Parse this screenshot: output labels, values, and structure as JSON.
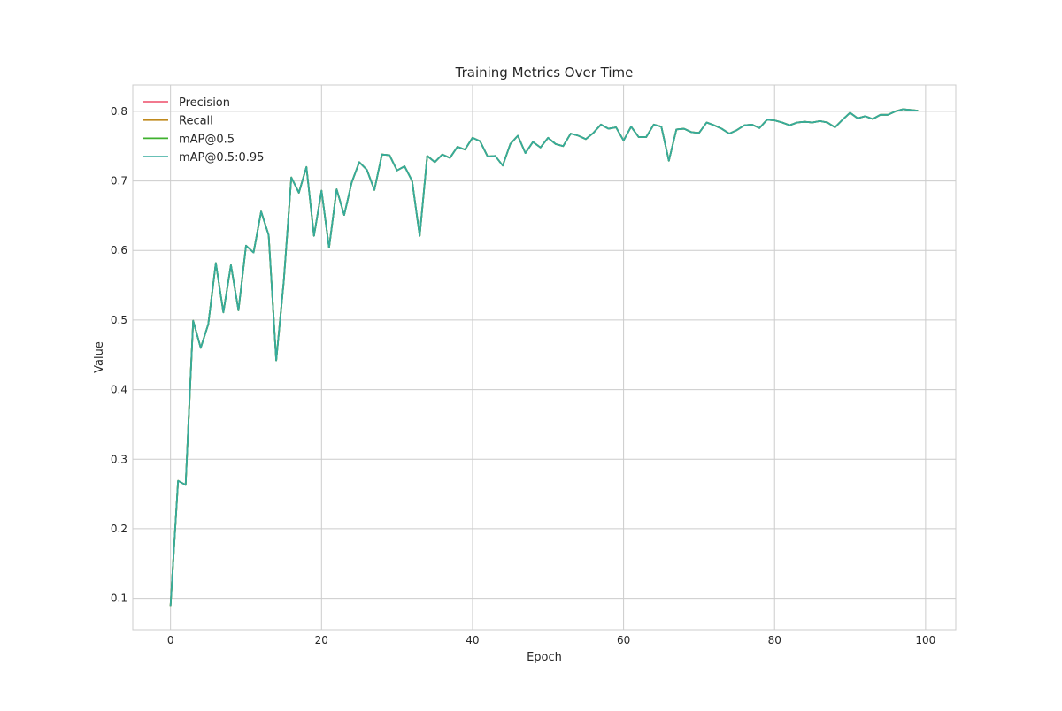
{
  "chart_data": {
    "type": "line",
    "title": "Training Metrics Over Time",
    "xlabel": "Epoch",
    "ylabel": "Value",
    "xlim": [
      -5,
      104
    ],
    "ylim": [
      0.055,
      0.838
    ],
    "xticks": [
      0,
      20,
      40,
      60,
      80,
      100
    ],
    "yticks": [
      0.1,
      0.2,
      0.3,
      0.4,
      0.5,
      0.6,
      0.7,
      0.8
    ],
    "grid": true,
    "legend_position": "top-left",
    "x": [
      0,
      1,
      2,
      3,
      4,
      5,
      6,
      7,
      8,
      9,
      10,
      11,
      12,
      13,
      14,
      15,
      16,
      17,
      18,
      19,
      20,
      21,
      22,
      23,
      24,
      25,
      26,
      27,
      28,
      29,
      30,
      31,
      32,
      33,
      34,
      35,
      36,
      37,
      38,
      39,
      40,
      41,
      42,
      43,
      44,
      45,
      46,
      47,
      48,
      49,
      50,
      51,
      52,
      53,
      54,
      55,
      56,
      57,
      58,
      59,
      60,
      61,
      62,
      63,
      64,
      65,
      66,
      67,
      68,
      69,
      70,
      71,
      72,
      73,
      74,
      75,
      76,
      77,
      78,
      79,
      80,
      81,
      82,
      83,
      84,
      85,
      86,
      87,
      88,
      89,
      90,
      91,
      92,
      93,
      94,
      95,
      96,
      97,
      98,
      99
    ],
    "series": [
      {
        "name": "Precision",
        "color": "#f0667e",
        "values": [
          0.089,
          0.269,
          0.263,
          0.499,
          0.46,
          0.494,
          0.582,
          0.511,
          0.579,
          0.514,
          0.607,
          0.597,
          0.656,
          0.622,
          0.442,
          0.556,
          0.705,
          0.683,
          0.72,
          0.621,
          0.686,
          0.604,
          0.688,
          0.651,
          0.698,
          0.727,
          0.716,
          0.687,
          0.738,
          0.737,
          0.715,
          0.721,
          0.7,
          0.621,
          0.736,
          0.727,
          0.738,
          0.733,
          0.749,
          0.745,
          0.762,
          0.757,
          0.735,
          0.736,
          0.722,
          0.753,
          0.765,
          0.74,
          0.756,
          0.748,
          0.762,
          0.753,
          0.75,
          0.768,
          0.765,
          0.76,
          0.769,
          0.781,
          0.775,
          0.777,
          0.758,
          0.778,
          0.763,
          0.763,
          0.781,
          0.778,
          0.729,
          0.774,
          0.775,
          0.77,
          0.769,
          0.784,
          0.78,
          0.775,
          0.768,
          0.773,
          0.78,
          0.781,
          0.776,
          0.788,
          0.787,
          0.784,
          0.78,
          0.784,
          0.785,
          0.784,
          0.786,
          0.784,
          0.777,
          0.788,
          0.798,
          0.79,
          0.793,
          0.789,
          0.795,
          0.795,
          0.8,
          0.803,
          0.802,
          0.801
        ]
      },
      {
        "name": "Recall",
        "color": "#c08a1e",
        "values": [
          0.089,
          0.269,
          0.263,
          0.499,
          0.46,
          0.494,
          0.582,
          0.511,
          0.579,
          0.514,
          0.607,
          0.597,
          0.656,
          0.622,
          0.442,
          0.556,
          0.705,
          0.683,
          0.72,
          0.621,
          0.686,
          0.604,
          0.688,
          0.651,
          0.698,
          0.727,
          0.716,
          0.687,
          0.738,
          0.737,
          0.715,
          0.721,
          0.7,
          0.621,
          0.736,
          0.727,
          0.738,
          0.733,
          0.749,
          0.745,
          0.762,
          0.757,
          0.735,
          0.736,
          0.722,
          0.753,
          0.765,
          0.74,
          0.756,
          0.748,
          0.762,
          0.753,
          0.75,
          0.768,
          0.765,
          0.76,
          0.769,
          0.781,
          0.775,
          0.777,
          0.758,
          0.778,
          0.763,
          0.763,
          0.781,
          0.778,
          0.729,
          0.774,
          0.775,
          0.77,
          0.769,
          0.784,
          0.78,
          0.775,
          0.768,
          0.773,
          0.78,
          0.781,
          0.776,
          0.788,
          0.787,
          0.784,
          0.78,
          0.784,
          0.785,
          0.784,
          0.786,
          0.784,
          0.777,
          0.788,
          0.798,
          0.79,
          0.793,
          0.789,
          0.795,
          0.795,
          0.8,
          0.803,
          0.802,
          0.801
        ]
      },
      {
        "name": "mAP@0.5",
        "color": "#3fb12e",
        "values": [
          0.089,
          0.269,
          0.263,
          0.499,
          0.46,
          0.494,
          0.582,
          0.511,
          0.579,
          0.514,
          0.607,
          0.597,
          0.656,
          0.622,
          0.442,
          0.556,
          0.705,
          0.683,
          0.72,
          0.621,
          0.686,
          0.604,
          0.688,
          0.651,
          0.698,
          0.727,
          0.716,
          0.687,
          0.738,
          0.737,
          0.715,
          0.721,
          0.7,
          0.621,
          0.736,
          0.727,
          0.738,
          0.733,
          0.749,
          0.745,
          0.762,
          0.757,
          0.735,
          0.736,
          0.722,
          0.753,
          0.765,
          0.74,
          0.756,
          0.748,
          0.762,
          0.753,
          0.75,
          0.768,
          0.765,
          0.76,
          0.769,
          0.781,
          0.775,
          0.777,
          0.758,
          0.778,
          0.763,
          0.763,
          0.781,
          0.778,
          0.729,
          0.774,
          0.775,
          0.77,
          0.769,
          0.784,
          0.78,
          0.775,
          0.768,
          0.773,
          0.78,
          0.781,
          0.776,
          0.788,
          0.787,
          0.784,
          0.78,
          0.784,
          0.785,
          0.784,
          0.786,
          0.784,
          0.777,
          0.788,
          0.798,
          0.79,
          0.793,
          0.789,
          0.795,
          0.795,
          0.8,
          0.803,
          0.802,
          0.801
        ]
      },
      {
        "name": "mAP@0.5:0.95",
        "color": "#36ab9d",
        "values": [
          0.089,
          0.269,
          0.263,
          0.499,
          0.46,
          0.494,
          0.582,
          0.511,
          0.579,
          0.514,
          0.607,
          0.597,
          0.656,
          0.622,
          0.442,
          0.556,
          0.705,
          0.683,
          0.72,
          0.621,
          0.686,
          0.604,
          0.688,
          0.651,
          0.698,
          0.727,
          0.716,
          0.687,
          0.738,
          0.737,
          0.715,
          0.721,
          0.7,
          0.621,
          0.736,
          0.727,
          0.738,
          0.733,
          0.749,
          0.745,
          0.762,
          0.757,
          0.735,
          0.736,
          0.722,
          0.753,
          0.765,
          0.74,
          0.756,
          0.748,
          0.762,
          0.753,
          0.75,
          0.768,
          0.765,
          0.76,
          0.769,
          0.781,
          0.775,
          0.777,
          0.758,
          0.778,
          0.763,
          0.763,
          0.781,
          0.778,
          0.729,
          0.774,
          0.775,
          0.77,
          0.769,
          0.784,
          0.78,
          0.775,
          0.768,
          0.773,
          0.78,
          0.781,
          0.776,
          0.788,
          0.787,
          0.784,
          0.78,
          0.784,
          0.785,
          0.784,
          0.786,
          0.784,
          0.777,
          0.788,
          0.798,
          0.79,
          0.793,
          0.789,
          0.795,
          0.795,
          0.8,
          0.803,
          0.802,
          0.801
        ]
      }
    ]
  }
}
